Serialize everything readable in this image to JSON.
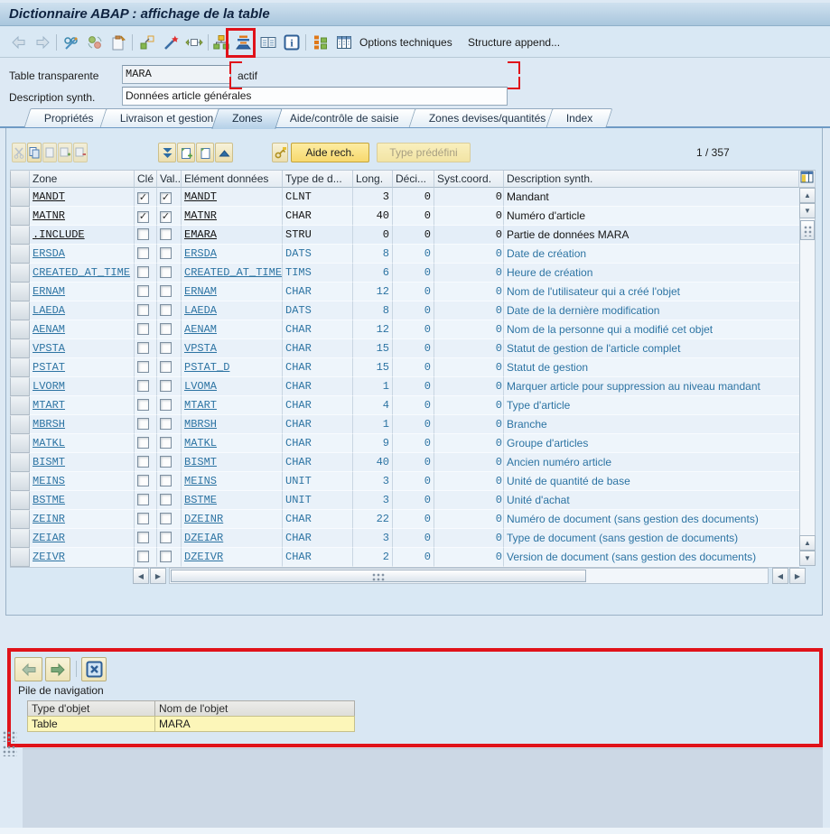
{
  "window": {
    "title": "Dictionnaire ABAP : affichage de la table"
  },
  "toolbar": {
    "options_techniques": "Options techniques",
    "structure_append": "Structure append...",
    "icons": [
      "back",
      "forward",
      "display-change",
      "refresh",
      "copy-to-clipboard",
      "rename",
      "activate",
      "copy-move",
      "hierarchy",
      "sorted-display",
      "table-contents",
      "information",
      "blocks",
      "table-columns"
    ]
  },
  "form": {
    "table_label": "Table transparente",
    "table_value": "MARA",
    "status_value": "actif",
    "desc_label": "Description synth.",
    "desc_value": "Données article générales"
  },
  "tabs": [
    {
      "label": "Propriétés"
    },
    {
      "label": "Livraison et gestion"
    },
    {
      "label": "Zones",
      "active": true
    },
    {
      "label": "Aide/contrôle de saisie"
    },
    {
      "label": "Zones devises/quantités"
    },
    {
      "label": "Index"
    }
  ],
  "zones_toolbar": {
    "search_help_label": "Aide rech.",
    "predefined_type_label": "Type prédéfini",
    "position": "1 / 357"
  },
  "table": {
    "columns": {
      "zone": "Zone",
      "key": "Clé",
      "init": "Val...",
      "element": "Elément données",
      "dtype": "Type de d...",
      "length": "Long.",
      "decimals": "Déci...",
      "coord": "Syst.coord.",
      "description": "Description synth."
    },
    "rows": [
      {
        "zone": "MANDT",
        "key": true,
        "init": true,
        "element": "MANDT",
        "dtype": "CLNT",
        "length": "3",
        "decimals": "0",
        "coord": "0",
        "description": "Mandant",
        "black": true
      },
      {
        "zone": "MATNR",
        "key": true,
        "init": true,
        "element": "MATNR",
        "dtype": "CHAR",
        "length": "40",
        "decimals": "0",
        "coord": "0",
        "description": "Numéro d'article",
        "black": true
      },
      {
        "zone": ".INCLUDE",
        "key": false,
        "init": false,
        "element": "EMARA",
        "dtype": "STRU",
        "length": "0",
        "decimals": "0",
        "coord": "0",
        "description": "Partie de données MARA",
        "black": true,
        "emph": true
      },
      {
        "zone": "ERSDA",
        "key": false,
        "init": false,
        "element": "ERSDA",
        "dtype": "DATS",
        "length": "8",
        "decimals": "0",
        "coord": "0",
        "description": "Date de création"
      },
      {
        "zone": "CREATED_AT_TIME",
        "key": false,
        "init": false,
        "element": "CREATED_AT_TIME",
        "dtype": "TIMS",
        "length": "6",
        "decimals": "0",
        "coord": "0",
        "description": "Heure de création"
      },
      {
        "zone": "ERNAM",
        "key": false,
        "init": false,
        "element": "ERNAM",
        "dtype": "CHAR",
        "length": "12",
        "decimals": "0",
        "coord": "0",
        "description": "Nom de l'utilisateur qui a créé l'objet"
      },
      {
        "zone": "LAEDA",
        "key": false,
        "init": false,
        "element": "LAEDA",
        "dtype": "DATS",
        "length": "8",
        "decimals": "0",
        "coord": "0",
        "description": "Date de la dernière modification"
      },
      {
        "zone": "AENAM",
        "key": false,
        "init": false,
        "element": "AENAM",
        "dtype": "CHAR",
        "length": "12",
        "decimals": "0",
        "coord": "0",
        "description": "Nom de la personne qui a modifié cet objet"
      },
      {
        "zone": "VPSTA",
        "key": false,
        "init": false,
        "element": "VPSTA",
        "dtype": "CHAR",
        "length": "15",
        "decimals": "0",
        "coord": "0",
        "description": "Statut de gestion de l'article complet"
      },
      {
        "zone": "PSTAT",
        "key": false,
        "init": false,
        "element": "PSTAT_D",
        "dtype": "CHAR",
        "length": "15",
        "decimals": "0",
        "coord": "0",
        "description": "Statut de gestion"
      },
      {
        "zone": "LVORM",
        "key": false,
        "init": false,
        "element": "LVOMA",
        "dtype": "CHAR",
        "length": "1",
        "decimals": "0",
        "coord": "0",
        "description": "Marquer article pour suppression au niveau mandant"
      },
      {
        "zone": "MTART",
        "key": false,
        "init": false,
        "element": "MTART",
        "dtype": "CHAR",
        "length": "4",
        "decimals": "0",
        "coord": "0",
        "description": "Type d'article"
      },
      {
        "zone": "MBRSH",
        "key": false,
        "init": false,
        "element": "MBRSH",
        "dtype": "CHAR",
        "length": "1",
        "decimals": "0",
        "coord": "0",
        "description": "Branche"
      },
      {
        "zone": "MATKL",
        "key": false,
        "init": false,
        "element": "MATKL",
        "dtype": "CHAR",
        "length": "9",
        "decimals": "0",
        "coord": "0",
        "description": "Groupe d'articles"
      },
      {
        "zone": "BISMT",
        "key": false,
        "init": false,
        "element": "BISMT",
        "dtype": "CHAR",
        "length": "40",
        "decimals": "0",
        "coord": "0",
        "description": "Ancien numéro article"
      },
      {
        "zone": "MEINS",
        "key": false,
        "init": false,
        "element": "MEINS",
        "dtype": "UNIT",
        "length": "3",
        "decimals": "0",
        "coord": "0",
        "description": "Unité de quantité de base"
      },
      {
        "zone": "BSTME",
        "key": false,
        "init": false,
        "element": "BSTME",
        "dtype": "UNIT",
        "length": "3",
        "decimals": "0",
        "coord": "0",
        "description": "Unité d'achat"
      },
      {
        "zone": "ZEINR",
        "key": false,
        "init": false,
        "element": "DZEINR",
        "dtype": "CHAR",
        "length": "22",
        "decimals": "0",
        "coord": "0",
        "description": "Numéro de document (sans gestion des documents)"
      },
      {
        "zone": "ZEIAR",
        "key": false,
        "init": false,
        "element": "DZEIAR",
        "dtype": "CHAR",
        "length": "3",
        "decimals": "0",
        "coord": "0",
        "description": "Type de document (sans gestion de documents)"
      },
      {
        "zone": "ZEIVR",
        "key": false,
        "init": false,
        "element": "DZEIVR",
        "dtype": "CHAR",
        "length": "2",
        "decimals": "0",
        "coord": "0",
        "description": "Version de document (sans gestion des documents)"
      }
    ]
  },
  "navigation_panel": {
    "title": "Pile de navigation",
    "col_type": "Type d'objet",
    "col_name": "Nom de l'objet",
    "row": {
      "type": "Table",
      "name": "MARA"
    }
  },
  "colors": {
    "annotation_red": "#e01219",
    "link_blue": "#2d74a3",
    "button_yellow": "#f7d96e",
    "cell_yellow": "#fcf6b9"
  }
}
